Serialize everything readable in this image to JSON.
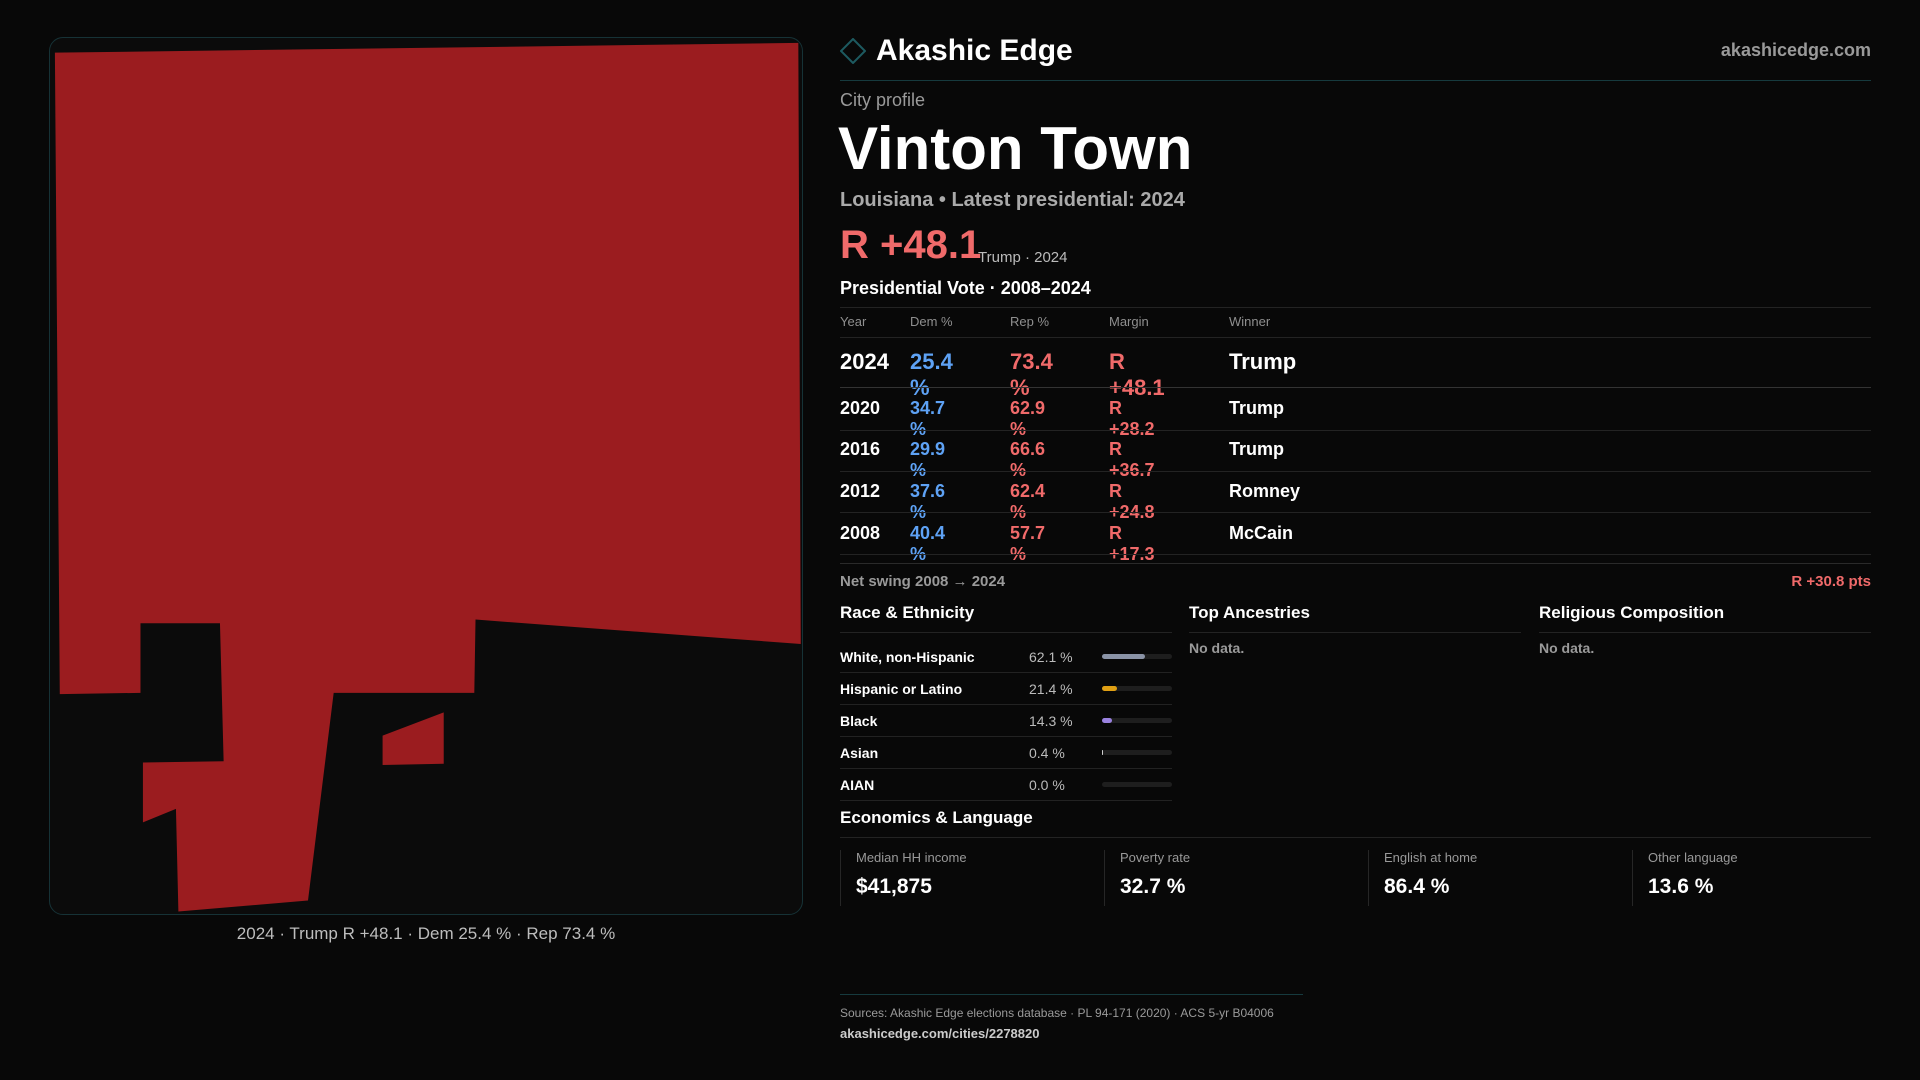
{
  "header": {
    "brand": "Akashic Edge",
    "site": "akashicedge.com",
    "logo_icon": "diamond-icon"
  },
  "profile": {
    "kicker": "City profile",
    "title": "Vinton Town",
    "subtitle": "Louisiana • Latest presidential: 2024",
    "margin": "R +48.1",
    "margin_note": "Trump · 2024"
  },
  "map": {
    "caption": "2024 · Trump R +48.1 · Dem 25.4 % · Rep 73.4 %",
    "fill_color": "#9b1c1f"
  },
  "vote": {
    "title": "Presidential Vote · 2008–2024",
    "columns": [
      "Year",
      "Dem %",
      "Rep %",
      "Margin",
      "Winner"
    ],
    "rows": [
      {
        "year": "2024",
        "dem": "25.4 %",
        "rep": "73.4 %",
        "margin": "R +48.1",
        "winner": "Trump"
      },
      {
        "year": "2020",
        "dem": "34.7 %",
        "rep": "62.9 %",
        "margin": "R +28.2",
        "winner": "Trump"
      },
      {
        "year": "2016",
        "dem": "29.9 %",
        "rep": "66.6 %",
        "margin": "R +36.7",
        "winner": "Trump"
      },
      {
        "year": "2012",
        "dem": "37.6 %",
        "rep": "62.4 %",
        "margin": "R +24.8",
        "winner": "Romney"
      },
      {
        "year": "2008",
        "dem": "40.4 %",
        "rep": "57.7 %",
        "margin": "R +17.3",
        "winner": "McCain"
      }
    ],
    "swing_label": "Net swing 2008 → 2024",
    "swing_value": "R +30.8 pts"
  },
  "race": {
    "title": "Race & Ethnicity",
    "items": [
      {
        "label": "White, non-Hispanic",
        "value": "62.1 %",
        "pct": 62.1,
        "color": "#8a93a6"
      },
      {
        "label": "Hispanic or Latino",
        "value": "21.4 %",
        "pct": 21.4,
        "color": "#e0a014"
      },
      {
        "label": "Black",
        "value": "14.3 %",
        "pct": 14.3,
        "color": "#9a82e0"
      },
      {
        "label": "Asian",
        "value": "0.4 %",
        "pct": 0.4,
        "color": "#cfcfcf"
      },
      {
        "label": "AIAN",
        "value": "0.0 %",
        "pct": 0,
        "color": "#cfcfcf"
      }
    ]
  },
  "ancestries": {
    "title": "Top Ancestries",
    "empty": "No data."
  },
  "religion": {
    "title": "Religious Composition",
    "empty": "No data."
  },
  "econ": {
    "title": "Economics & Language",
    "metrics": [
      {
        "label": "Median HH income",
        "value": "$41,875"
      },
      {
        "label": "Poverty rate",
        "value": "32.7 %"
      },
      {
        "label": "English at home",
        "value": "86.4 %"
      },
      {
        "label": "Other language",
        "value": "13.6 %"
      }
    ]
  },
  "footer": {
    "sources": "Sources: Akashic Edge elections database · PL 94-171 (2020) · ACS 5-yr B04006",
    "url": "akashicedge.com/cities/2278820"
  }
}
